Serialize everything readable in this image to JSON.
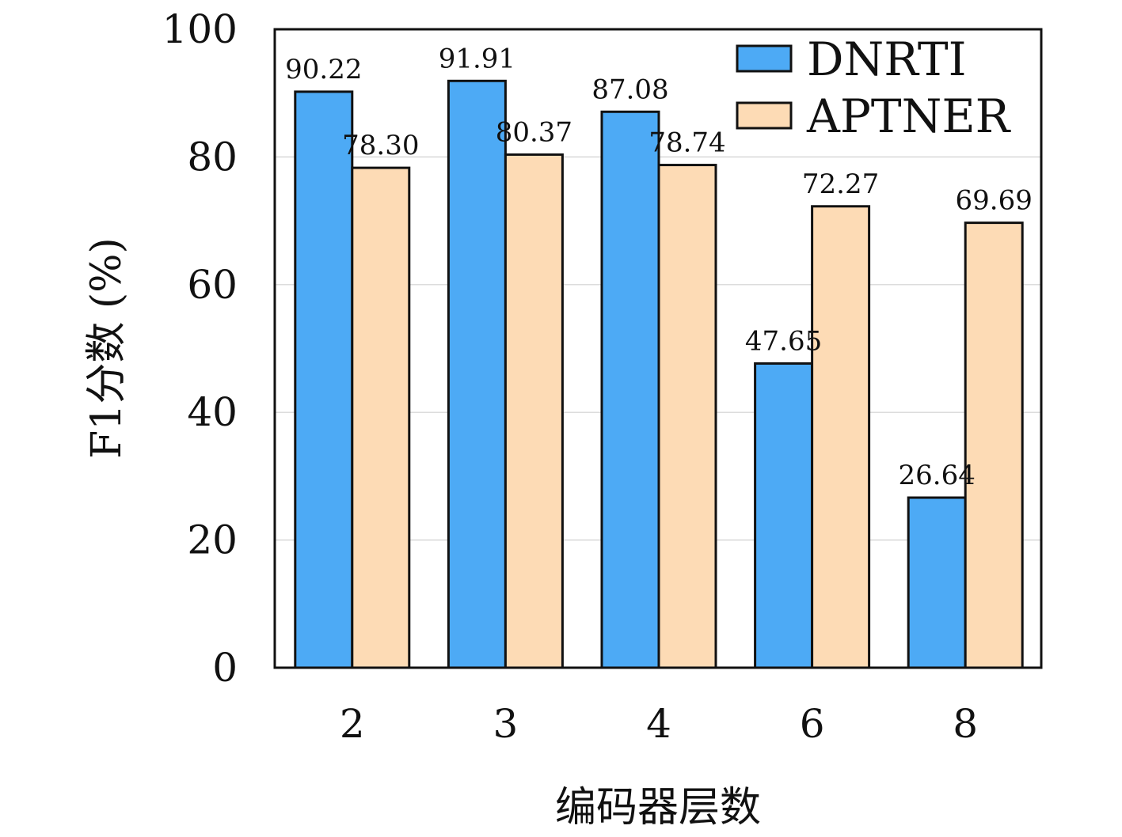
{
  "chart_data": {
    "type": "bar",
    "xlabel": "编码器层数",
    "ylabel": "F1分数 (%)",
    "categories": [
      "2",
      "3",
      "4",
      "6",
      "8"
    ],
    "ylim": [
      0,
      100
    ],
    "yticks": [
      "0",
      "20",
      "40",
      "60",
      "80",
      "100"
    ],
    "grid": "horizontal",
    "legend_position": "top-right",
    "series": [
      {
        "name": "DNRTI",
        "color": "#4daaf5",
        "values": [
          90.22,
          91.91,
          87.08,
          47.65,
          26.64
        ],
        "labels": [
          "90.22",
          "91.91",
          "87.08",
          "47.65",
          "26.64"
        ]
      },
      {
        "name": "APTNER",
        "color": "#fddbb5",
        "values": [
          78.3,
          80.37,
          78.74,
          72.27,
          69.69
        ],
        "labels": [
          "78.30",
          "80.37",
          "78.74",
          "72.27",
          "69.69"
        ]
      }
    ]
  }
}
